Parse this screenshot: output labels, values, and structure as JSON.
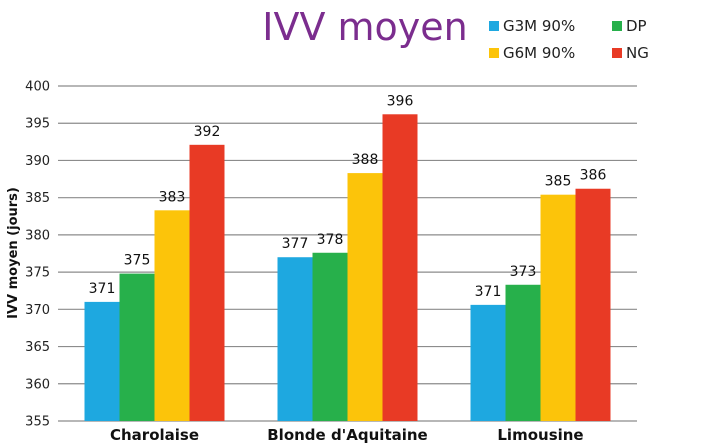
{
  "chart_data": {
    "type": "bar",
    "title": "IVV moyen",
    "ylabel": "IVV moyen (jours)",
    "xlabel": "",
    "ylim": [
      355,
      400
    ],
    "yticks": [
      355,
      360,
      365,
      370,
      375,
      380,
      385,
      390,
      395,
      400
    ],
    "grid": true,
    "legend_position": "top-right",
    "categories": [
      "Charolaise",
      "Blonde d'Aquitaine",
      "Limousine"
    ],
    "series": [
      {
        "name": "G3M 90%",
        "color": "#1ea8e0",
        "values": [
          371,
          377,
          370.6
        ],
        "labels": [
          "371",
          "377",
          "371"
        ]
      },
      {
        "name": "DP",
        "color": "#27b04b",
        "values": [
          374.8,
          377.6,
          373.3
        ],
        "labels": [
          "375",
          "378",
          "373"
        ]
      },
      {
        "name": "G6M 90%",
        "color": "#fcc40a",
        "values": [
          383.3,
          388.3,
          385.4
        ],
        "labels": [
          "383",
          "388",
          "385"
        ]
      },
      {
        "name": "NG",
        "color": "#e83a25",
        "values": [
          392.1,
          396.2,
          386.2
        ],
        "labels": [
          "392",
          "396",
          "386"
        ]
      }
    ]
  }
}
